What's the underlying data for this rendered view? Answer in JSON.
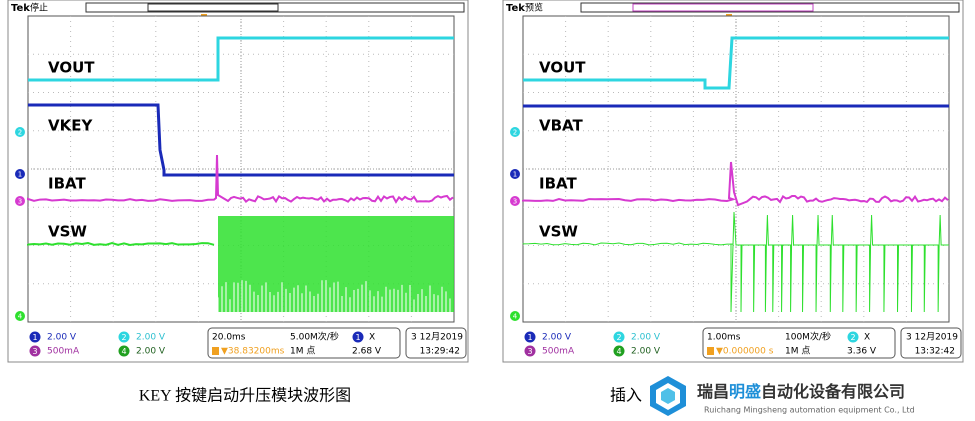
{
  "scopes": [
    {
      "brand": "Tek",
      "status": "停止",
      "traces": [
        "VOUT",
        "VKEY",
        "IBAT",
        "VSW"
      ],
      "channels": [
        {
          "id": "1",
          "scale": "2.00 V"
        },
        {
          "id": "2",
          "scale": "2.00 V"
        },
        {
          "id": "3",
          "scale": "500mA"
        },
        {
          "id": "4",
          "scale": "2.00 V"
        }
      ],
      "timebase": "20.0ms",
      "sample_rate": "5.00M次/秒",
      "trigger_pos": "▼38.83200ms",
      "record_length": "1M 点",
      "trigger_source": "1",
      "trigger_slope": "X",
      "trigger_level": "2.68 V",
      "date": "3 12月2019",
      "clock": "13:29:42"
    },
    {
      "brand": "Tek",
      "status": "预览",
      "traces": [
        "VOUT",
        "VBAT",
        "IBAT",
        "VSW"
      ],
      "channels": [
        {
          "id": "1",
          "scale": "2.00 V"
        },
        {
          "id": "2",
          "scale": "2.00 V"
        },
        {
          "id": "3",
          "scale": "500mA"
        },
        {
          "id": "4",
          "scale": "2.00 V"
        }
      ],
      "timebase": "1.00ms",
      "sample_rate": "100M次/秒",
      "trigger_pos": "▼0.000000 s",
      "record_length": "1M 点",
      "trigger_source": "2",
      "trigger_slope": "X",
      "trigger_level": "3.36 V",
      "date": "3 12月2019",
      "clock": "13:32:42"
    }
  ],
  "captions": [
    "KEY 按键启动升压模块波形图",
    "插入"
  ],
  "logo": {
    "name_start": "瑞昌",
    "name_highlight": "明盛",
    "name_end": "自动化设备有限公司",
    "english": "Ruichang Mingsheng automation equipment Co., Ltd"
  }
}
